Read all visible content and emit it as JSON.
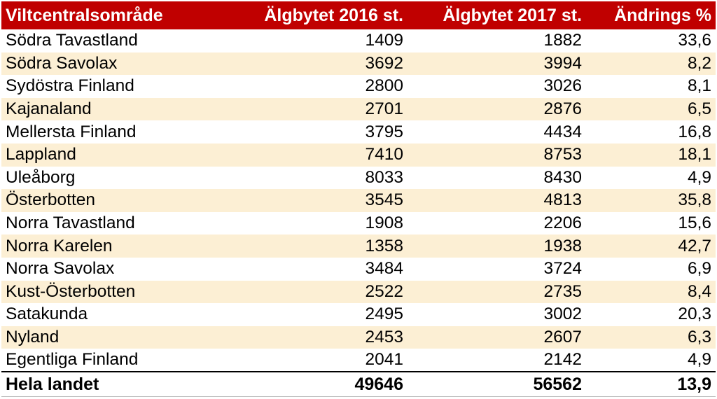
{
  "chart_data": {
    "type": "table",
    "columns": [
      "Viltcentralsområde",
      "Älgbytet 2016 st.",
      "Älgbytet 2017 st.",
      "Ändrings %"
    ],
    "rows": [
      {
        "region": "Södra Tavastland",
        "y2016": "1409",
        "y2017": "1882",
        "change": "33,6"
      },
      {
        "region": "Södra Savolax",
        "y2016": "3692",
        "y2017": "3994",
        "change": "8,2"
      },
      {
        "region": "Sydöstra Finland",
        "y2016": "2800",
        "y2017": "3026",
        "change": "8,1"
      },
      {
        "region": "Kajanaland",
        "y2016": "2701",
        "y2017": "2876",
        "change": "6,5"
      },
      {
        "region": "Mellersta Finland",
        "y2016": "3795",
        "y2017": "4434",
        "change": "16,8"
      },
      {
        "region": "Lappland",
        "y2016": "7410",
        "y2017": "8753",
        "change": "18,1"
      },
      {
        "region": "Uleåborg",
        "y2016": "8033",
        "y2017": "8430",
        "change": "4,9"
      },
      {
        "region": "Österbotten",
        "y2016": "3545",
        "y2017": "4813",
        "change": "35,8"
      },
      {
        "region": "Norra Tavastland",
        "y2016": "1908",
        "y2017": "2206",
        "change": "15,6"
      },
      {
        "region": "Norra Karelen",
        "y2016": "1358",
        "y2017": "1938",
        "change": "42,7"
      },
      {
        "region": "Norra Savolax",
        "y2016": "3484",
        "y2017": "3724",
        "change": "6,9"
      },
      {
        "region": "Kust-Österbotten",
        "y2016": "2522",
        "y2017": "2735",
        "change": "8,4"
      },
      {
        "region": "Satakunda",
        "y2016": "2495",
        "y2017": "3002",
        "change": "20,3"
      },
      {
        "region": "Nyland",
        "y2016": "2453",
        "y2017": "2607",
        "change": "6,3"
      },
      {
        "region": "Egentliga Finland",
        "y2016": "2041",
        "y2017": "2142",
        "change": "4,9"
      }
    ],
    "total": {
      "region": "Hela landet",
      "y2016": "49646",
      "y2017": "56562",
      "change": "13,9"
    }
  },
  "colors": {
    "header_bg": "#c00000",
    "header_text": "#ffffff",
    "band_even": "#fcefd4",
    "band_odd": "#ffffff"
  }
}
